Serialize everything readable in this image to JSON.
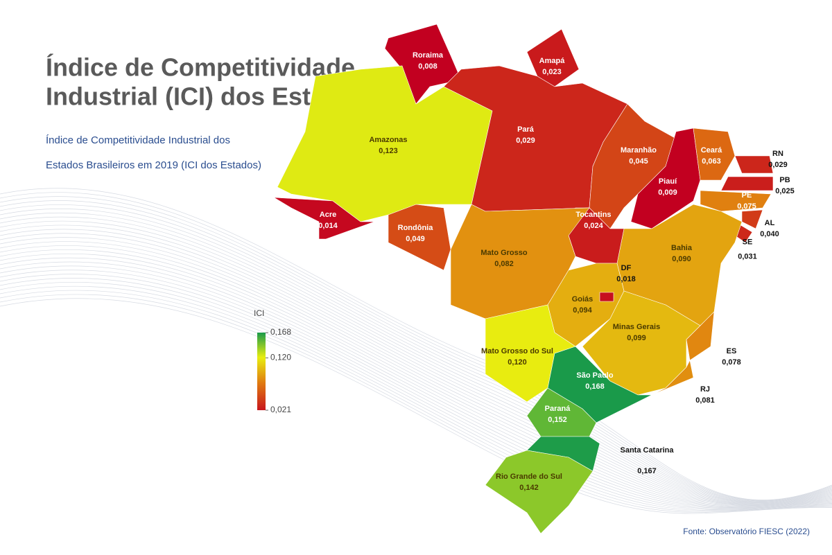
{
  "title": [
    "Índice de Competitividade",
    "Industrial (ICI) dos Estados"
  ],
  "subtitle": [
    "Índice de Competitividade Industrial dos",
    "Estados Brasileiros em 2019 (ICI dos Estados)"
  ],
  "legend": {
    "title": "ICI",
    "ticks": [
      {
        "value": 0.168,
        "label": "0,168"
      },
      {
        "value": 0.12,
        "label": "0,120"
      },
      {
        "value": 0.021,
        "label": "0,021"
      }
    ]
  },
  "states": [
    {
      "name": "Roraima",
      "value": 0.008,
      "label": "0,008"
    },
    {
      "name": "Amapá",
      "value": 0.023,
      "label": "0,023"
    },
    {
      "name": "Amazonas",
      "value": 0.123,
      "label": "0,123"
    },
    {
      "name": "Pará",
      "value": 0.029,
      "label": "0,029"
    },
    {
      "name": "Maranhão",
      "value": 0.045,
      "label": "0,045"
    },
    {
      "name": "Piauí",
      "value": 0.009,
      "label": "0,009"
    },
    {
      "name": "Ceará",
      "value": 0.063,
      "label": "0,063"
    },
    {
      "name": "RN",
      "value": 0.029,
      "label": "0,029"
    },
    {
      "name": "PB",
      "value": 0.025,
      "label": "0,025"
    },
    {
      "name": "PE",
      "value": 0.075,
      "label": "0,075"
    },
    {
      "name": "AL",
      "value": 0.04,
      "label": "0,040"
    },
    {
      "name": "SE",
      "value": 0.031,
      "label": "0,031"
    },
    {
      "name": "Bahia",
      "value": 0.09,
      "label": "0,090"
    },
    {
      "name": "Tocantins",
      "value": 0.024,
      "label": "0,024"
    },
    {
      "name": "Mato Grosso",
      "value": 0.082,
      "label": "0,082"
    },
    {
      "name": "Rondônia",
      "value": 0.049,
      "label": "0,049"
    },
    {
      "name": "Acre",
      "value": 0.014,
      "label": "0,014"
    },
    {
      "name": "Goiás",
      "value": 0.094,
      "label": "0,094"
    },
    {
      "name": "DF",
      "value": 0.018,
      "label": "0,018"
    },
    {
      "name": "Minas Gerais",
      "value": 0.099,
      "label": "0,099"
    },
    {
      "name": "ES",
      "value": 0.078,
      "label": "0,078"
    },
    {
      "name": "RJ",
      "value": 0.081,
      "label": "0,081"
    },
    {
      "name": "Mato Grosso do Sul",
      "value": 0.12,
      "label": "0,120"
    },
    {
      "name": "São Paulo",
      "value": 0.168,
      "label": "0,168"
    },
    {
      "name": "Paraná",
      "value": 0.152,
      "label": "0,152"
    },
    {
      "name": "Santa Catarina",
      "value": 0.167,
      "label": "0,167"
    },
    {
      "name": "Rio Grande do Sul",
      "value": 0.142,
      "label": "0,142"
    }
  ],
  "source": "Fonte: Observatório FIESC (2022)"
}
